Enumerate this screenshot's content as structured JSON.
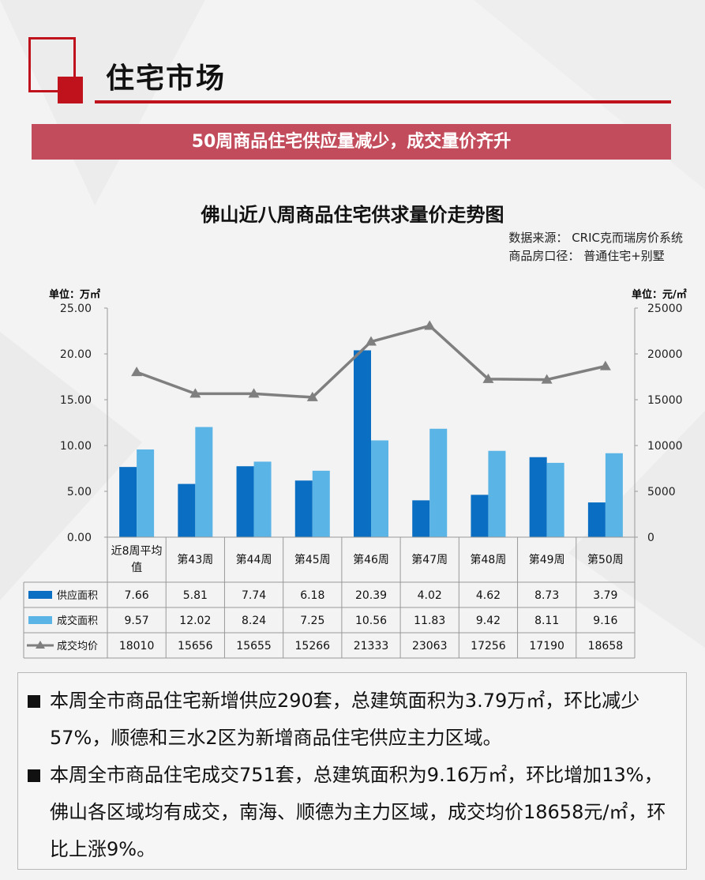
{
  "section_title": "住宅市场",
  "banner": "50周商品住宅供应量减少，成交量价齐升",
  "colors": {
    "accent": "#c0121c",
    "banner": "#c24c5b",
    "supply": "#0a6fc2",
    "deal": "#5ab4e6",
    "price": "#7f7f7f"
  },
  "chart_data": {
    "type": "bar",
    "title": "佛山近八周商品住宅供求量价走势图",
    "source_lines": [
      "数据来源：  CRIC克而瑞房价系统",
      "商品房口径：  普通住宅+别墅"
    ],
    "left_unit": "单位：万㎡",
    "right_unit": "单位：元/㎡",
    "left_ticks": [
      "25.00",
      "20.00",
      "15.00",
      "10.00",
      "5.00",
      "0.00"
    ],
    "right_ticks": [
      "25000",
      "20000",
      "15000",
      "10000",
      "5000",
      "0"
    ],
    "ylim_left": [
      0,
      25
    ],
    "ylim_right": [
      0,
      25000
    ],
    "categories": [
      "近8周平均值",
      "第43周",
      "第44周",
      "第45周",
      "第46周",
      "第47周",
      "第48周",
      "第49周",
      "第50周"
    ],
    "series": [
      {
        "name": "供应面积",
        "type": "bar",
        "axis": "left",
        "values": [
          7.66,
          5.81,
          7.74,
          6.18,
          20.39,
          4.02,
          4.62,
          8.73,
          3.79
        ],
        "labels": [
          "7.66",
          "5.81",
          "7.74",
          "6.18",
          "20.39",
          "4.02",
          "4.62",
          "8.73",
          "3.79"
        ]
      },
      {
        "name": "成交面积",
        "type": "bar",
        "axis": "left",
        "values": [
          9.57,
          12.02,
          8.24,
          7.25,
          10.56,
          11.83,
          9.42,
          8.11,
          9.16
        ],
        "labels": [
          "9.57",
          "12.02",
          "8.24",
          "7.25",
          "10.56",
          "11.83",
          "9.42",
          "8.11",
          "9.16"
        ]
      },
      {
        "name": "成交均价",
        "type": "line",
        "axis": "right",
        "values": [
          18010,
          15656,
          15655,
          15266,
          21333,
          23063,
          17256,
          17190,
          18658
        ],
        "labels": [
          "18010",
          "15656",
          "15655",
          "15266",
          "21333",
          "23063",
          "17256",
          "17190",
          "18658"
        ]
      }
    ]
  },
  "notes": [
    "本周全市商品住宅新增供应290套，总建筑面积为3.79万㎡，环比减少57%，顺德和三水2区为新增商品住宅供应主力区域。",
    "本周全市商品住宅成交751套，总建筑面积为9.16万㎡，环比增加13%，佛山各区域均有成交，南海、顺德为主力区域，成交均价18658元/㎡，环比上涨9%。"
  ]
}
